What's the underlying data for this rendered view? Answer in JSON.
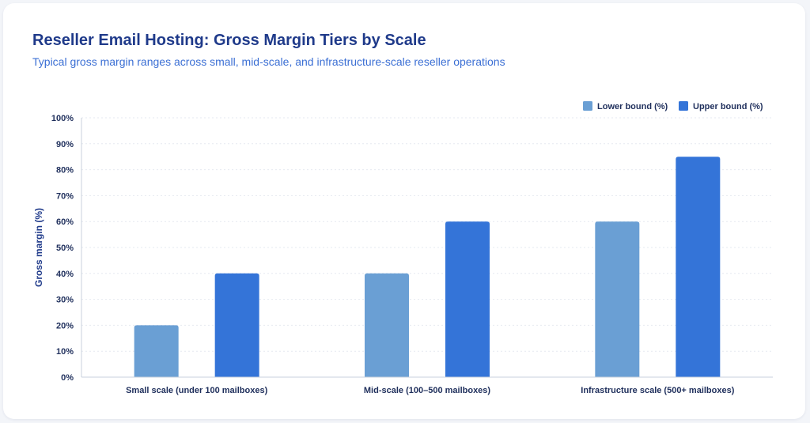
{
  "header": {
    "title": "Reseller Email Hosting: Gross Margin Tiers by Scale",
    "subtitle": "Typical gross margin ranges across small, mid-scale, and infrastructure-scale reseller operations"
  },
  "colors": {
    "lower": "#6a9fd4",
    "upper": "#3474d8",
    "title": "#1f3a8a",
    "subtitle": "#3b6fd4"
  },
  "chart_data": {
    "type": "bar",
    "categories": [
      "Small scale (under 100 mailboxes)",
      "Mid-scale (100–500 mailboxes)",
      "Infrastructure scale (500+ mailboxes)"
    ],
    "series": [
      {
        "name": "Lower bound (%)",
        "values": [
          20,
          40,
          60
        ],
        "color": "#6a9fd4"
      },
      {
        "name": "Upper bound (%)",
        "values": [
          40,
          60,
          85
        ],
        "color": "#3474d8"
      }
    ],
    "ylabel": "Gross margin (%)",
    "ylim": [
      0,
      100
    ],
    "yticks": [
      0,
      10,
      20,
      30,
      40,
      50,
      60,
      70,
      80,
      90,
      100
    ],
    "tick_suffix": "%",
    "grid": true,
    "legend": "top-right"
  }
}
